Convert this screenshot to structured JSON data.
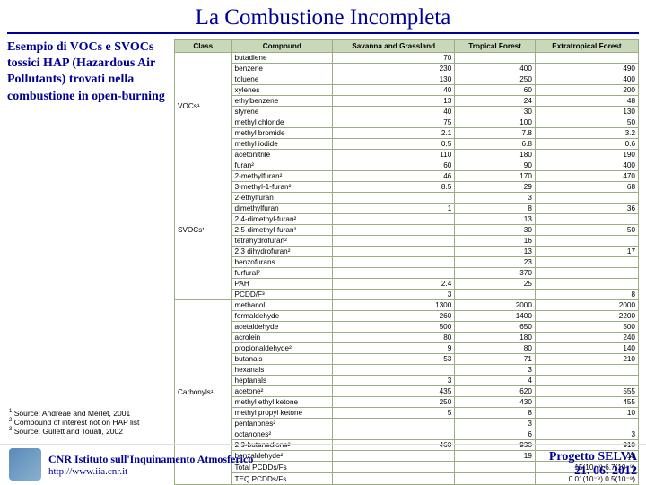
{
  "title": "La Combustione Incompleta",
  "left_text": "Esempio di VOCs e SVOCs tossici HAP (Hazardous Air Pollutants) trovati nella combustione in open-burning",
  "table": {
    "headers": [
      "Class",
      "Compound",
      "Savanna and Grassland",
      "Tropical Forest",
      "Extratropical Forest"
    ],
    "groups": [
      {
        "class": "VOCs¹",
        "rows": [
          [
            "butadiene",
            "70",
            "",
            ""
          ],
          [
            "benzene",
            "230",
            "400",
            "490"
          ],
          [
            "toluene",
            "130",
            "250",
            "400"
          ],
          [
            "xylenes",
            "40",
            "60",
            "200"
          ],
          [
            "ethylbenzene",
            "13",
            "24",
            "48"
          ],
          [
            "styrene",
            "40",
            "30",
            "130"
          ],
          [
            "methyl chloride",
            "75",
            "100",
            "50"
          ],
          [
            "methyl bromide",
            "2.1",
            "7.8",
            "3.2"
          ],
          [
            "methyl iodide",
            "0.5",
            "6.8",
            "0.6"
          ],
          [
            "acetonitrile",
            "110",
            "180",
            "190"
          ]
        ]
      },
      {
        "class": "SVOCs¹",
        "rows": [
          [
            "furan²",
            "60",
            "90",
            "400"
          ],
          [
            "2-methylfuran²",
            "46",
            "170",
            "470"
          ],
          [
            "3-methyl-1-furan²",
            "8.5",
            "29",
            "68"
          ],
          [
            "2-ethylfuran",
            "",
            "3",
            ""
          ],
          [
            "dimethylfuran",
            "1",
            "8",
            "36"
          ],
          [
            "2,4-dimethyl-furan²",
            "",
            "13",
            ""
          ],
          [
            "2,5-dimethyl-furan²",
            "",
            "30",
            "50"
          ],
          [
            "tetrahydrofuran²",
            "",
            "16",
            ""
          ],
          [
            "2,3 dihydrofuran²",
            "",
            "13",
            "17"
          ],
          [
            "benzofurans",
            "",
            "23",
            ""
          ],
          [
            "furfural²",
            "",
            "370",
            ""
          ],
          [
            "PAH",
            "2.4",
            "25",
            ""
          ],
          [
            "PCDD/F³",
            "3",
            "",
            "8"
          ]
        ]
      },
      {
        "class": "Carbonyls¹",
        "rows": [
          [
            "methanol",
            "1300",
            "2000",
            "2000"
          ],
          [
            "formaldehyde",
            "260",
            "1400",
            "2200"
          ],
          [
            "acetaldehyde",
            "500",
            "650",
            "500"
          ],
          [
            "acrolein",
            "80",
            "180",
            "240"
          ],
          [
            "propionaldehyde²",
            "9",
            "80",
            "140"
          ],
          [
            "butanals",
            "53",
            "71",
            "210"
          ],
          [
            "hexanals",
            "",
            "3",
            ""
          ],
          [
            "heptanals",
            "3",
            "4",
            ""
          ],
          [
            "acetone²",
            "435",
            "620",
            "555"
          ],
          [
            "methyl ethyl ketone",
            "250",
            "430",
            "455"
          ],
          [
            "methyl propyl ketone",
            "5",
            "8",
            "10"
          ],
          [
            "pentanones²",
            "",
            "3",
            ""
          ],
          [
            "octanones²",
            "",
            "6",
            "3"
          ],
          [
            "2,3-butanedione²",
            "460",
            "930",
            "910"
          ],
          [
            "benzaldehyde²",
            "",
            "19",
            "19"
          ],
          [
            "Total PCDDs/Fs",
            "",
            "",
            "15(10⁻⁹) 6.7(10⁻⁹)"
          ],
          [
            "TEQ PCDDs/Fs",
            "",
            "",
            "0.01(10⁻⁹) 0.5(10⁻⁹)"
          ]
        ]
      }
    ]
  },
  "sources": [
    "Source: Andreae and Merlet, 2001",
    "Compound of interest not on HAP list",
    "Source: Gullett and Touati, 2002"
  ],
  "footer": {
    "institute": "CNR Istituto sull'Inquinamento Atmosferico",
    "url": "http://www.iia.cnr.it",
    "project": "Progetto SELVA",
    "date": "21. 06. 2012"
  }
}
